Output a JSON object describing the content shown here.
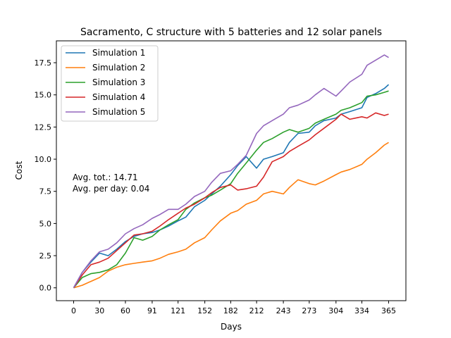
{
  "chart_data": {
    "type": "line",
    "title": "Sacramento, C structure with 5 batteries and 12 solar panels",
    "xlabel": "Days",
    "ylabel": "Cost",
    "xlim": [
      -20,
      385
    ],
    "ylim": [
      -1.0,
      19.2
    ],
    "xticks": [
      0,
      30,
      60,
      91,
      121,
      152,
      182,
      212,
      243,
      273,
      304,
      334,
      365
    ],
    "yticks": [
      0.0,
      2.5,
      5.0,
      7.5,
      10.0,
      12.5,
      15.0,
      17.5
    ],
    "ytick_labels": [
      "0.0",
      "2.5",
      "5.0",
      "7.5",
      "10.0",
      "12.5",
      "15.0",
      "17.5"
    ],
    "legend_position": "top-left",
    "grid": false,
    "annotations": [
      "Avg. tot.: 14.71",
      "Avg. per day: 0.04"
    ],
    "series": [
      {
        "name": "Simulation 1",
        "color": "#1f77b4",
        "x": [
          0,
          10,
          20,
          30,
          40,
          50,
          60,
          70,
          80,
          91,
          100,
          110,
          121,
          130,
          140,
          152,
          160,
          170,
          182,
          190,
          200,
          212,
          220,
          230,
          243,
          250,
          260,
          273,
          280,
          290,
          304,
          310,
          320,
          334,
          340,
          350,
          360,
          365
        ],
        "y": [
          0.0,
          1.2,
          2.0,
          2.7,
          2.5,
          3.0,
          3.6,
          4.0,
          4.2,
          4.3,
          4.5,
          4.8,
          5.2,
          5.5,
          6.3,
          6.8,
          7.3,
          7.9,
          8.8,
          9.5,
          10.2,
          9.3,
          10.0,
          10.2,
          10.5,
          11.3,
          12.0,
          12.1,
          12.6,
          13.0,
          13.2,
          13.5,
          13.7,
          14.0,
          14.8,
          15.1,
          15.5,
          15.8
        ]
      },
      {
        "name": "Simulation 2",
        "color": "#ff7f0e",
        "x": [
          0,
          10,
          20,
          30,
          40,
          50,
          60,
          70,
          80,
          91,
          100,
          110,
          121,
          130,
          140,
          152,
          160,
          170,
          182,
          190,
          200,
          212,
          220,
          230,
          243,
          250,
          260,
          273,
          280,
          290,
          304,
          310,
          320,
          334,
          340,
          350,
          360,
          365
        ],
        "y": [
          0.0,
          0.2,
          0.5,
          0.8,
          1.3,
          1.6,
          1.8,
          1.9,
          2.0,
          2.1,
          2.3,
          2.6,
          2.8,
          3.0,
          3.5,
          3.9,
          4.5,
          5.2,
          5.8,
          6.0,
          6.5,
          6.8,
          7.3,
          7.5,
          7.3,
          7.8,
          8.4,
          8.1,
          8.0,
          8.3,
          8.8,
          9.0,
          9.2,
          9.6,
          10.0,
          10.5,
          11.1,
          11.3
        ]
      },
      {
        "name": "Simulation 3",
        "color": "#2ca02c",
        "x": [
          0,
          10,
          20,
          30,
          40,
          50,
          60,
          70,
          80,
          91,
          100,
          110,
          121,
          130,
          140,
          152,
          160,
          170,
          182,
          190,
          200,
          212,
          220,
          230,
          243,
          250,
          260,
          273,
          280,
          290,
          304,
          310,
          320,
          334,
          340,
          350,
          360,
          365
        ],
        "y": [
          0.0,
          0.8,
          1.1,
          1.2,
          1.4,
          1.8,
          2.7,
          3.9,
          3.7,
          4.0,
          4.5,
          4.9,
          5.3,
          6.1,
          6.6,
          7.0,
          7.2,
          7.6,
          8.1,
          8.9,
          9.7,
          10.7,
          11.3,
          11.6,
          12.1,
          12.3,
          12.1,
          12.4,
          12.8,
          13.1,
          13.5,
          13.8,
          14.0,
          14.4,
          14.9,
          15.0,
          15.2,
          15.3
        ]
      },
      {
        "name": "Simulation 4",
        "color": "#d62728",
        "x": [
          0,
          10,
          20,
          30,
          40,
          50,
          60,
          70,
          80,
          91,
          100,
          110,
          121,
          130,
          140,
          152,
          160,
          170,
          182,
          190,
          200,
          212,
          220,
          230,
          243,
          250,
          260,
          273,
          280,
          290,
          304,
          310,
          320,
          334,
          340,
          350,
          360,
          365
        ],
        "y": [
          0.0,
          1.0,
          1.8,
          2.0,
          2.3,
          2.9,
          3.5,
          4.1,
          4.2,
          4.4,
          4.8,
          5.3,
          5.8,
          6.2,
          6.5,
          7.0,
          7.4,
          7.8,
          8.0,
          7.6,
          7.7,
          7.9,
          8.6,
          9.8,
          10.2,
          10.6,
          11.0,
          11.5,
          11.9,
          12.4,
          13.1,
          13.5,
          13.1,
          13.3,
          13.2,
          13.6,
          13.4,
          13.5
        ]
      },
      {
        "name": "Simulation 5",
        "color": "#9467bd",
        "x": [
          0,
          10,
          20,
          30,
          40,
          50,
          60,
          70,
          80,
          91,
          100,
          110,
          121,
          130,
          140,
          152,
          160,
          170,
          182,
          190,
          200,
          212,
          220,
          230,
          243,
          250,
          260,
          273,
          280,
          290,
          304,
          310,
          320,
          334,
          340,
          350,
          360,
          365
        ],
        "y": [
          0.0,
          1.2,
          2.1,
          2.8,
          3.0,
          3.5,
          4.2,
          4.6,
          4.9,
          5.4,
          5.7,
          6.1,
          6.1,
          6.5,
          7.1,
          7.5,
          8.2,
          8.9,
          9.1,
          9.6,
          10.3,
          12.0,
          12.6,
          13.0,
          13.5,
          14.0,
          14.2,
          14.6,
          15.0,
          15.5,
          14.9,
          15.3,
          16.0,
          16.6,
          17.3,
          17.7,
          18.1,
          17.9
        ]
      }
    ]
  }
}
